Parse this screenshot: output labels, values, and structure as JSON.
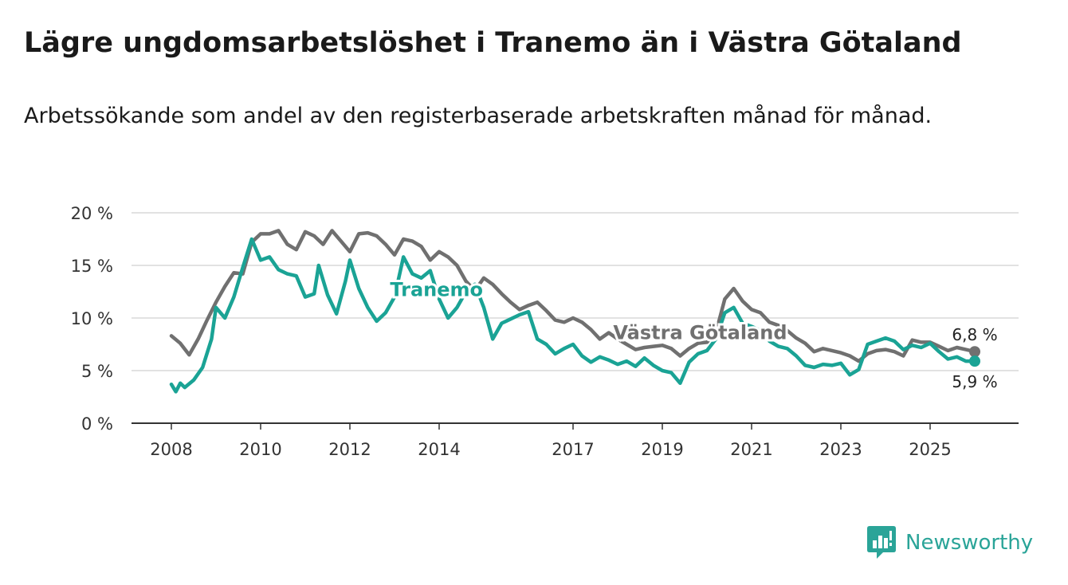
{
  "header": {
    "title": "Lägre ungdomsarbetslöshet i Tranemo än i Västra Götaland",
    "subtitle": "Arbetssökande som andel av den registerbaserade arbetskraften månad för månad."
  },
  "branding": {
    "name": "Newsworthy",
    "color": "#2aa498"
  },
  "chart_data": {
    "type": "line",
    "title": "Lägre ungdomsarbetslöshet i Tranemo än i Västra Götaland",
    "subtitle": "Arbetssökande som andel av den registerbaserade arbetskraften månad för månad.",
    "xlabel": "",
    "ylabel": "",
    "x_range": [
      2008.0,
      2026.25
    ],
    "ylim": [
      0,
      20
    ],
    "y_ticks": [
      0,
      5,
      10,
      15,
      20
    ],
    "y_tick_labels": [
      "0 %",
      "5 %",
      "10 %",
      "15 %",
      "20 %"
    ],
    "x_ticks": [
      2008,
      2010,
      2012,
      2014,
      2017,
      2019,
      2021,
      2023,
      2025
    ],
    "x_tick_labels": [
      "2008",
      "2010",
      "2012",
      "2014",
      "2017",
      "2019",
      "2021",
      "2023",
      "2025"
    ],
    "grid": true,
    "series": [
      {
        "name": "Västra Götaland",
        "color": "#707070",
        "end_label": "6,8 %",
        "points": [
          [
            2008.0,
            8.3
          ],
          [
            2008.2,
            7.6
          ],
          [
            2008.4,
            6.5
          ],
          [
            2008.6,
            8.0
          ],
          [
            2008.8,
            9.8
          ],
          [
            2009.0,
            11.5
          ],
          [
            2009.2,
            13.0
          ],
          [
            2009.4,
            14.3
          ],
          [
            2009.6,
            14.2
          ],
          [
            2009.8,
            17.2
          ],
          [
            2010.0,
            18.0
          ],
          [
            2010.2,
            18.0
          ],
          [
            2010.4,
            18.3
          ],
          [
            2010.6,
            17.0
          ],
          [
            2010.8,
            16.5
          ],
          [
            2011.0,
            18.2
          ],
          [
            2011.2,
            17.8
          ],
          [
            2011.4,
            17.0
          ],
          [
            2011.6,
            18.3
          ],
          [
            2011.8,
            17.3
          ],
          [
            2012.0,
            16.3
          ],
          [
            2012.2,
            18.0
          ],
          [
            2012.4,
            18.1
          ],
          [
            2012.6,
            17.8
          ],
          [
            2012.8,
            17.0
          ],
          [
            2013.0,
            16.0
          ],
          [
            2013.2,
            17.5
          ],
          [
            2013.4,
            17.3
          ],
          [
            2013.6,
            16.8
          ],
          [
            2013.8,
            15.5
          ],
          [
            2014.0,
            16.3
          ],
          [
            2014.2,
            15.8
          ],
          [
            2014.4,
            15.0
          ],
          [
            2014.6,
            13.5
          ],
          [
            2014.8,
            12.6
          ],
          [
            2015.0,
            13.8
          ],
          [
            2015.2,
            13.2
          ],
          [
            2015.4,
            12.3
          ],
          [
            2015.6,
            11.5
          ],
          [
            2015.8,
            10.8
          ],
          [
            2016.0,
            11.2
          ],
          [
            2016.2,
            11.5
          ],
          [
            2016.4,
            10.7
          ],
          [
            2016.6,
            9.8
          ],
          [
            2016.8,
            9.6
          ],
          [
            2017.0,
            10.0
          ],
          [
            2017.2,
            9.6
          ],
          [
            2017.4,
            8.9
          ],
          [
            2017.6,
            8.0
          ],
          [
            2017.8,
            8.6
          ],
          [
            2018.0,
            8.0
          ],
          [
            2018.2,
            7.5
          ],
          [
            2018.4,
            7.0
          ],
          [
            2018.6,
            7.2
          ],
          [
            2018.8,
            7.3
          ],
          [
            2019.0,
            7.4
          ],
          [
            2019.2,
            7.1
          ],
          [
            2019.4,
            6.4
          ],
          [
            2019.6,
            7.1
          ],
          [
            2019.8,
            7.6
          ],
          [
            2020.0,
            7.7
          ],
          [
            2020.2,
            8.6
          ],
          [
            2020.4,
            11.8
          ],
          [
            2020.6,
            12.8
          ],
          [
            2020.8,
            11.6
          ],
          [
            2021.0,
            10.8
          ],
          [
            2021.2,
            10.5
          ],
          [
            2021.4,
            9.6
          ],
          [
            2021.6,
            9.3
          ],
          [
            2021.8,
            8.8
          ],
          [
            2022.0,
            8.1
          ],
          [
            2022.2,
            7.6
          ],
          [
            2022.4,
            6.8
          ],
          [
            2022.6,
            7.1
          ],
          [
            2022.8,
            6.9
          ],
          [
            2023.0,
            6.7
          ],
          [
            2023.2,
            6.4
          ],
          [
            2023.4,
            5.9
          ],
          [
            2023.6,
            6.6
          ],
          [
            2023.8,
            6.9
          ],
          [
            2024.0,
            7.0
          ],
          [
            2024.2,
            6.8
          ],
          [
            2024.4,
            6.4
          ],
          [
            2024.6,
            7.9
          ],
          [
            2024.8,
            7.7
          ],
          [
            2025.0,
            7.7
          ],
          [
            2025.2,
            7.3
          ],
          [
            2025.4,
            6.9
          ],
          [
            2025.6,
            7.2
          ],
          [
            2025.8,
            7.0
          ],
          [
            2026.0,
            6.8
          ]
        ]
      },
      {
        "name": "Tranemo",
        "color": "#1aa395",
        "end_label": "5,9 %",
        "points": [
          [
            2008.0,
            3.7
          ],
          [
            2008.1,
            3.0
          ],
          [
            2008.2,
            3.8
          ],
          [
            2008.3,
            3.4
          ],
          [
            2008.5,
            4.1
          ],
          [
            2008.7,
            5.3
          ],
          [
            2008.9,
            8.0
          ],
          [
            2009.0,
            11.0
          ],
          [
            2009.2,
            10.0
          ],
          [
            2009.4,
            12.0
          ],
          [
            2009.6,
            14.8
          ],
          [
            2009.8,
            17.5
          ],
          [
            2010.0,
            15.5
          ],
          [
            2010.2,
            15.8
          ],
          [
            2010.4,
            14.6
          ],
          [
            2010.6,
            14.2
          ],
          [
            2010.8,
            14.0
          ],
          [
            2011.0,
            12.0
          ],
          [
            2011.2,
            12.3
          ],
          [
            2011.3,
            15.0
          ],
          [
            2011.5,
            12.2
          ],
          [
            2011.7,
            10.4
          ],
          [
            2011.9,
            13.5
          ],
          [
            2012.0,
            15.5
          ],
          [
            2012.2,
            12.8
          ],
          [
            2012.4,
            11.0
          ],
          [
            2012.6,
            9.7
          ],
          [
            2012.8,
            10.5
          ],
          [
            2013.0,
            12.0
          ],
          [
            2013.2,
            15.8
          ],
          [
            2013.4,
            14.2
          ],
          [
            2013.6,
            13.8
          ],
          [
            2013.8,
            14.5
          ],
          [
            2014.0,
            11.8
          ],
          [
            2014.2,
            10.0
          ],
          [
            2014.4,
            11.0
          ],
          [
            2014.6,
            12.5
          ],
          [
            2014.8,
            13.2
          ],
          [
            2015.0,
            11.0
          ],
          [
            2015.2,
            8.0
          ],
          [
            2015.4,
            9.5
          ],
          [
            2015.6,
            9.9
          ],
          [
            2015.8,
            10.3
          ],
          [
            2016.0,
            10.6
          ],
          [
            2016.2,
            8.0
          ],
          [
            2016.4,
            7.5
          ],
          [
            2016.6,
            6.6
          ],
          [
            2016.8,
            7.1
          ],
          [
            2017.0,
            7.5
          ],
          [
            2017.2,
            6.4
          ],
          [
            2017.4,
            5.8
          ],
          [
            2017.6,
            6.3
          ],
          [
            2017.8,
            6.0
          ],
          [
            2018.0,
            5.6
          ],
          [
            2018.2,
            5.9
          ],
          [
            2018.4,
            5.4
          ],
          [
            2018.6,
            6.2
          ],
          [
            2018.8,
            5.5
          ],
          [
            2019.0,
            5.0
          ],
          [
            2019.2,
            4.8
          ],
          [
            2019.4,
            3.8
          ],
          [
            2019.6,
            5.8
          ],
          [
            2019.8,
            6.6
          ],
          [
            2020.0,
            6.9
          ],
          [
            2020.2,
            8.0
          ],
          [
            2020.4,
            10.5
          ],
          [
            2020.6,
            11.0
          ],
          [
            2020.8,
            9.5
          ],
          [
            2021.0,
            9.2
          ],
          [
            2021.2,
            8.8
          ],
          [
            2021.4,
            7.8
          ],
          [
            2021.6,
            7.3
          ],
          [
            2021.8,
            7.1
          ],
          [
            2022.0,
            6.4
          ],
          [
            2022.2,
            5.5
          ],
          [
            2022.4,
            5.3
          ],
          [
            2022.6,
            5.6
          ],
          [
            2022.8,
            5.5
          ],
          [
            2023.0,
            5.7
          ],
          [
            2023.2,
            4.6
          ],
          [
            2023.4,
            5.1
          ],
          [
            2023.6,
            7.5
          ],
          [
            2023.8,
            7.8
          ],
          [
            2024.0,
            8.1
          ],
          [
            2024.2,
            7.8
          ],
          [
            2024.4,
            7.0
          ],
          [
            2024.6,
            7.4
          ],
          [
            2024.8,
            7.2
          ],
          [
            2025.0,
            7.6
          ],
          [
            2025.2,
            6.8
          ],
          [
            2025.4,
            6.1
          ],
          [
            2025.6,
            6.3
          ],
          [
            2025.8,
            5.9
          ],
          [
            2026.0,
            5.9
          ]
        ]
      }
    ],
    "annotations": [
      {
        "text": "Tranemo",
        "series": "Tranemo",
        "x": 2012.9,
        "y": 12.1
      },
      {
        "text": "Västra Götaland",
        "series": "Västra Götaland",
        "x": 2017.9,
        "y": 8.0
      }
    ]
  }
}
